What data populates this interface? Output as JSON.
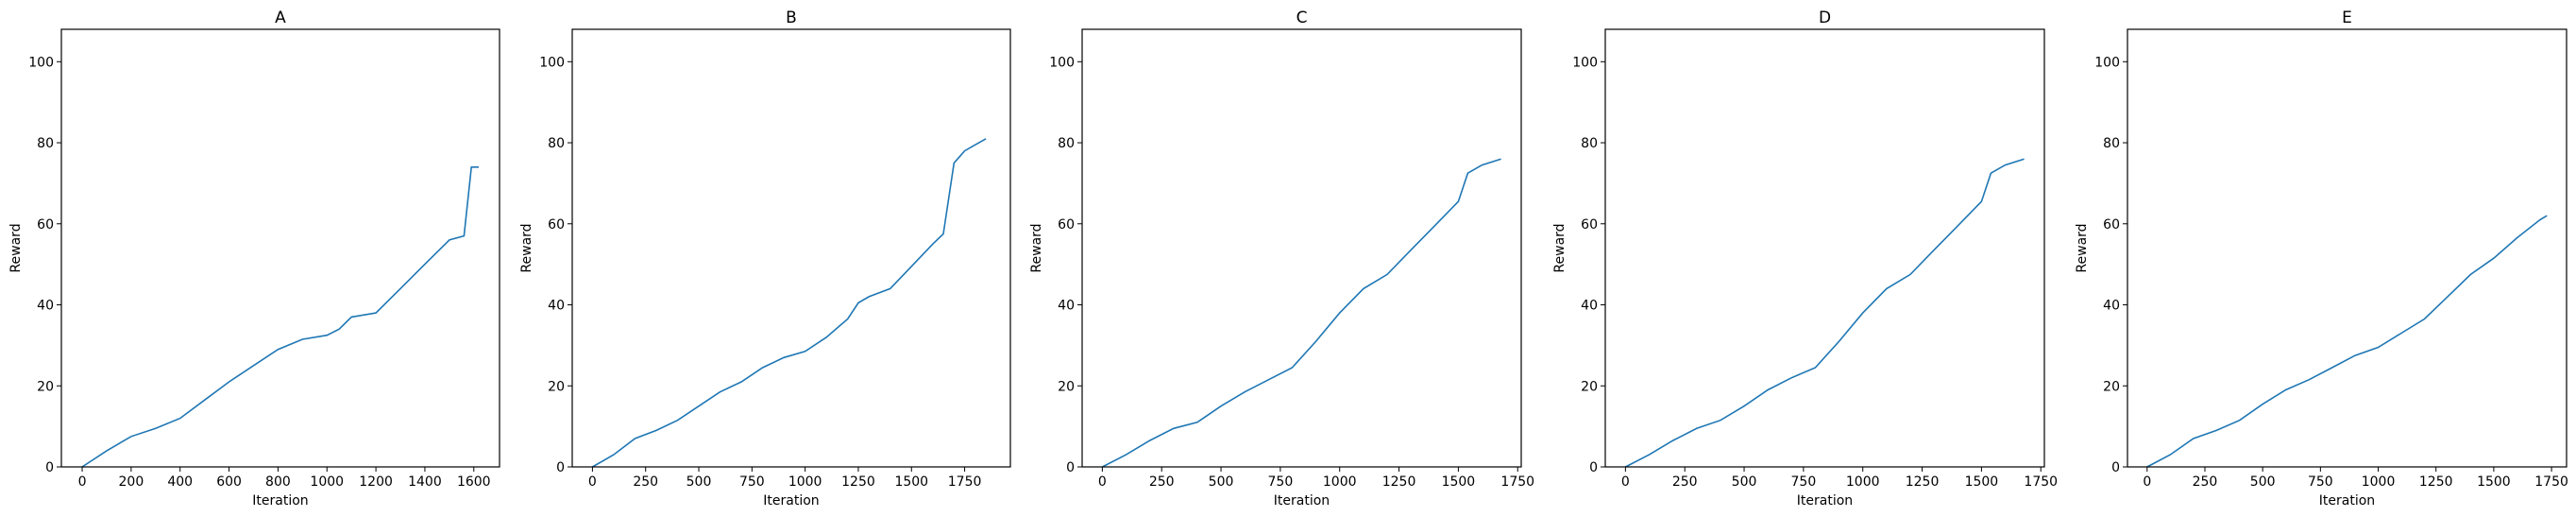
{
  "chart_data": [
    {
      "type": "line",
      "title": "A",
      "xlabel": "Iteration",
      "ylabel": "Reward",
      "xlim": [
        -85,
        1705
      ],
      "ylim": [
        0,
        108
      ],
      "xticks": [
        0,
        200,
        400,
        600,
        800,
        1000,
        1200,
        1400,
        1600
      ],
      "yticks": [
        0,
        20,
        40,
        60,
        80,
        100
      ],
      "grid": false,
      "color": "#1f77b4",
      "series": [
        {
          "x": [
            0,
            100,
            200,
            300,
            400,
            500,
            600,
            700,
            800,
            900,
            1000,
            1050,
            1100,
            1200,
            1300,
            1400,
            1500,
            1560,
            1590,
            1620
          ],
          "values": [
            0,
            4,
            7.5,
            9.5,
            12,
            16.5,
            21,
            25,
            29,
            31.5,
            32.5,
            34,
            37,
            38,
            44,
            50,
            56,
            57,
            74,
            74
          ]
        }
      ]
    },
    {
      "type": "line",
      "title": "B",
      "xlabel": "Iteration",
      "ylabel": "Reward",
      "xlim": [
        -95,
        1965
      ],
      "ylim": [
        0,
        108
      ],
      "xticks": [
        0,
        250,
        500,
        750,
        1000,
        1250,
        1500,
        1750
      ],
      "yticks": [
        0,
        20,
        40,
        60,
        80,
        100
      ],
      "grid": false,
      "color": "#1f77b4",
      "series": [
        {
          "x": [
            0,
            100,
            200,
            300,
            400,
            500,
            600,
            700,
            800,
            900,
            1000,
            1100,
            1200,
            1250,
            1300,
            1400,
            1500,
            1600,
            1650,
            1700,
            1750,
            1800,
            1850
          ],
          "values": [
            0,
            3,
            7,
            9,
            11.5,
            15,
            18.5,
            21,
            24.5,
            27,
            28.5,
            32,
            36.5,
            40.5,
            42,
            44,
            49.5,
            55,
            57.5,
            75,
            78,
            79.5,
            81
          ]
        }
      ]
    },
    {
      "type": "line",
      "title": "C",
      "xlabel": "Iteration",
      "ylabel": "Reward",
      "xlim": [
        -85,
        1765
      ],
      "ylim": [
        0,
        108
      ],
      "xticks": [
        0,
        250,
        500,
        750,
        1000,
        1250,
        1500,
        1750
      ],
      "yticks": [
        0,
        20,
        40,
        60,
        80,
        100
      ],
      "grid": false,
      "color": "#1f77b4",
      "series": [
        {
          "x": [
            0,
            100,
            200,
            300,
            400,
            500,
            600,
            700,
            800,
            900,
            1000,
            1100,
            1200,
            1300,
            1400,
            1500,
            1540,
            1600,
            1680
          ],
          "values": [
            0,
            3,
            6.5,
            9.5,
            11,
            15,
            18.5,
            21.5,
            24.5,
            31,
            38,
            44,
            47.5,
            53.5,
            59.5,
            65.5,
            72.5,
            74.5,
            76
          ]
        }
      ]
    },
    {
      "type": "line",
      "title": "D",
      "xlabel": "Iteration",
      "ylabel": "Reward",
      "xlim": [
        -85,
        1765
      ],
      "ylim": [
        0,
        108
      ],
      "xticks": [
        0,
        250,
        500,
        750,
        1000,
        1250,
        1500,
        1750
      ],
      "yticks": [
        0,
        20,
        40,
        60,
        80,
        100
      ],
      "grid": false,
      "color": "#1f77b4",
      "series": [
        {
          "x": [
            0,
            100,
            200,
            300,
            400,
            500,
            600,
            700,
            800,
            900,
            1000,
            1100,
            1200,
            1300,
            1400,
            1500,
            1540,
            1600,
            1680
          ],
          "values": [
            0,
            3,
            6.5,
            9.5,
            11.5,
            15,
            19,
            22,
            24.5,
            31,
            38,
            44,
            47.5,
            53.5,
            59.5,
            65.5,
            72.5,
            74.5,
            76
          ]
        }
      ]
    },
    {
      "type": "line",
      "title": "E",
      "xlabel": "Iteration",
      "ylabel": "Reward",
      "xlim": [
        -85,
        1815
      ],
      "ylim": [
        0,
        108
      ],
      "xticks": [
        0,
        250,
        500,
        750,
        1000,
        1250,
        1500,
        1750
      ],
      "yticks": [
        0,
        20,
        40,
        60,
        80,
        100
      ],
      "grid": false,
      "color": "#1f77b4",
      "series": [
        {
          "x": [
            0,
            100,
            200,
            300,
            400,
            500,
            600,
            700,
            800,
            900,
            1000,
            1100,
            1200,
            1300,
            1400,
            1500,
            1600,
            1700,
            1730
          ],
          "values": [
            0,
            3,
            7,
            9,
            11.5,
            15.5,
            19,
            21.5,
            24.5,
            27.5,
            29.5,
            33,
            36.5,
            42,
            47.5,
            51.5,
            56.5,
            61,
            62
          ]
        }
      ]
    }
  ]
}
